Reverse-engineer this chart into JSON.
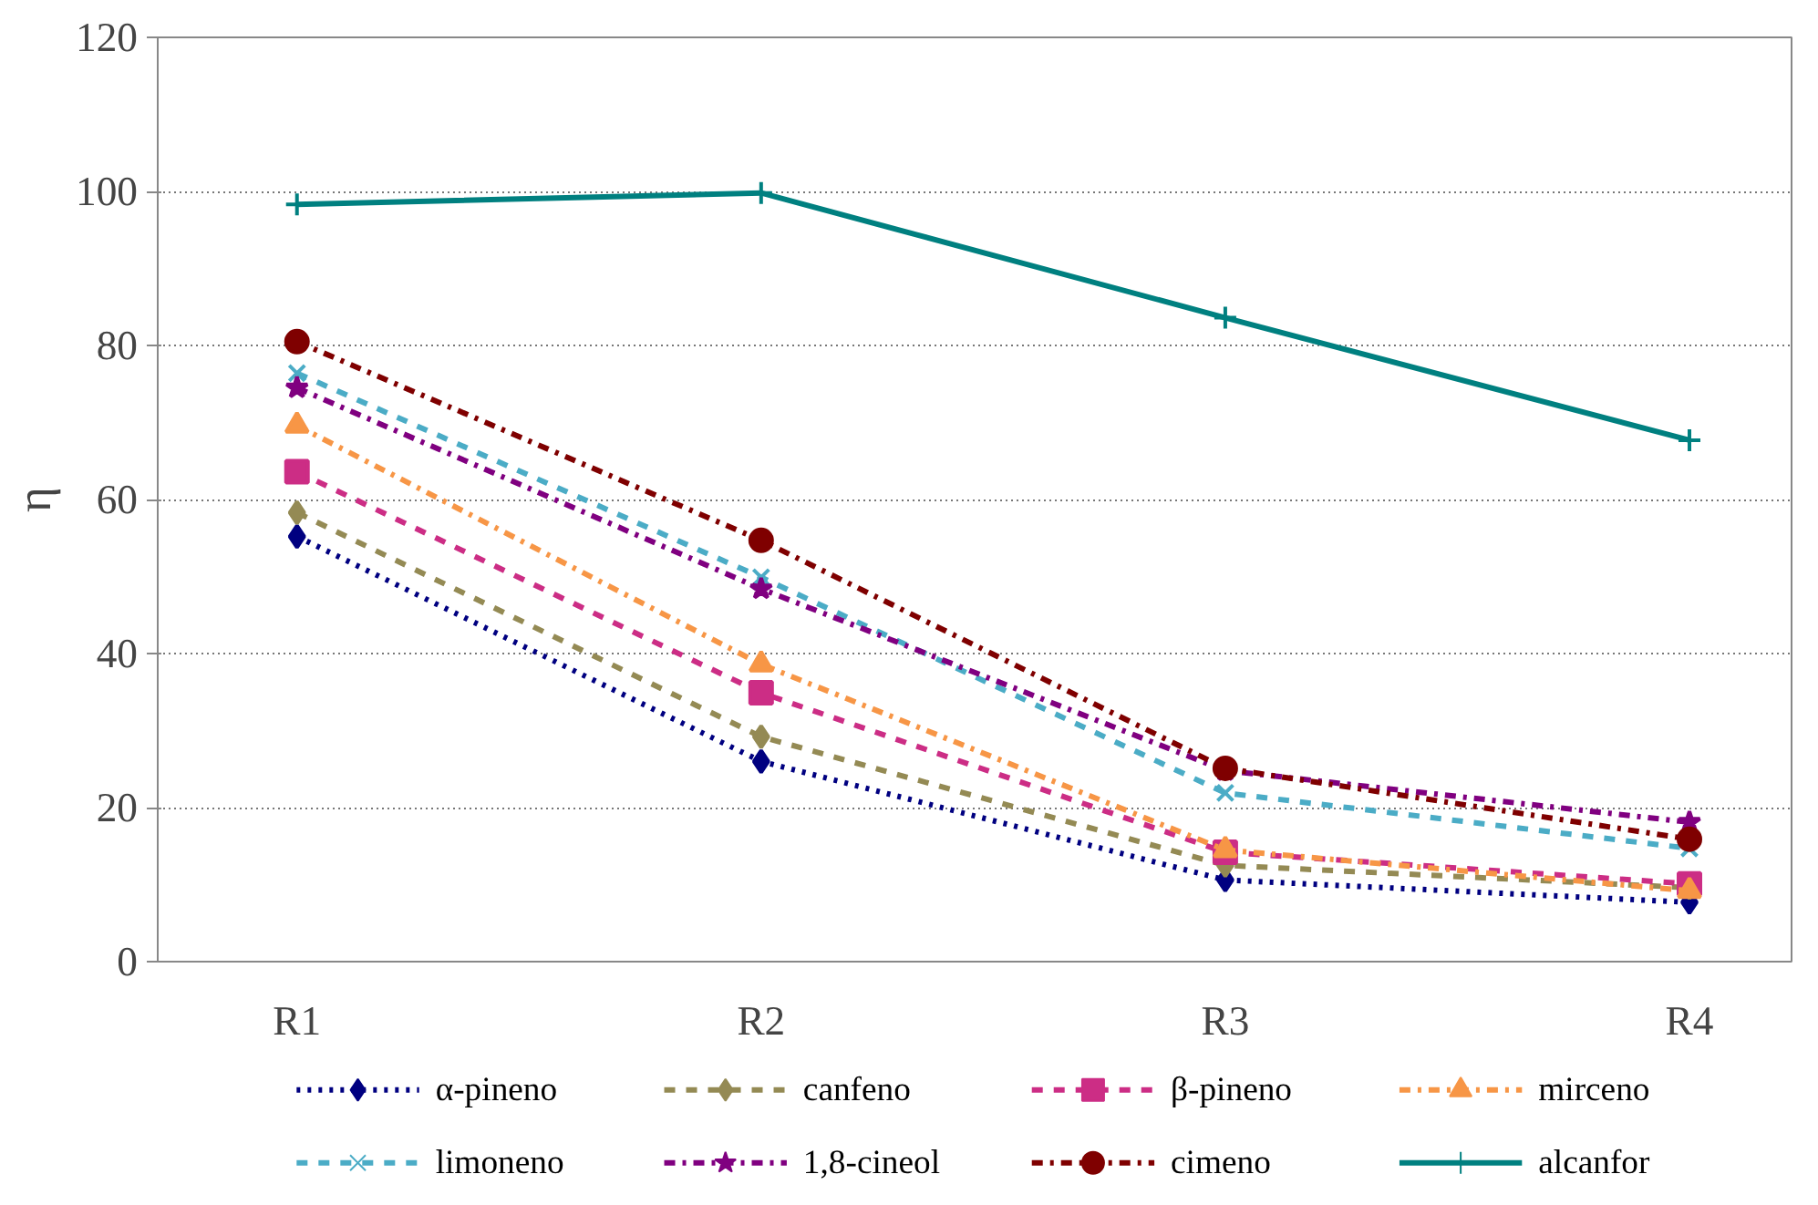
{
  "chart_data": {
    "type": "line",
    "ylabel": "η",
    "categories": [
      "R1",
      "R2",
      "R3",
      "R4"
    ],
    "ylim": [
      0,
      120
    ],
    "yticks": [
      0,
      20,
      40,
      60,
      80,
      100,
      120
    ],
    "grid": "y",
    "legend": "bottom",
    "series": [
      {
        "name": "α-pineno",
        "color": "#000080",
        "marker": "diamond",
        "line_style": "dotted",
        "values": [
          55.2,
          26,
          10.6,
          7.7
        ]
      },
      {
        "name": "canfeno",
        "color": "#948a54",
        "marker": "diamond",
        "line_style": "dashed",
        "values": [
          58.3,
          29.2,
          12.5,
          9.6
        ]
      },
      {
        "name": "β-pineno",
        "color": "#cc2d85",
        "marker": "square",
        "line_style": "dashed",
        "values": [
          63.6,
          34.9,
          14.2,
          10.1
        ]
      },
      {
        "name": "mirceno",
        "color": "#f79646",
        "marker": "triangle",
        "line_style": "dashdot",
        "values": [
          69.6,
          38.6,
          14.5,
          9.2
        ]
      },
      {
        "name": "limoneno",
        "color": "#4bacc6",
        "marker": "x",
        "line_style": "dashed",
        "values": [
          76.4,
          49.9,
          21.9,
          14.7
        ]
      },
      {
        "name": "1,8-cineol",
        "color": "#800080",
        "marker": "star",
        "line_style": "dashdot",
        "values": [
          74.5,
          48.4,
          24.8,
          18.1
        ]
      },
      {
        "name": "cimeno",
        "color": "#7f0000",
        "marker": "circle",
        "line_style": "dashdot",
        "values": [
          80.5,
          54.7,
          25.1,
          15.9
        ]
      },
      {
        "name": "alcanfor",
        "color": "#008080",
        "marker": "cross",
        "line_style": "solid",
        "values": [
          98.3,
          99.8,
          83.6,
          67.7
        ]
      }
    ]
  }
}
